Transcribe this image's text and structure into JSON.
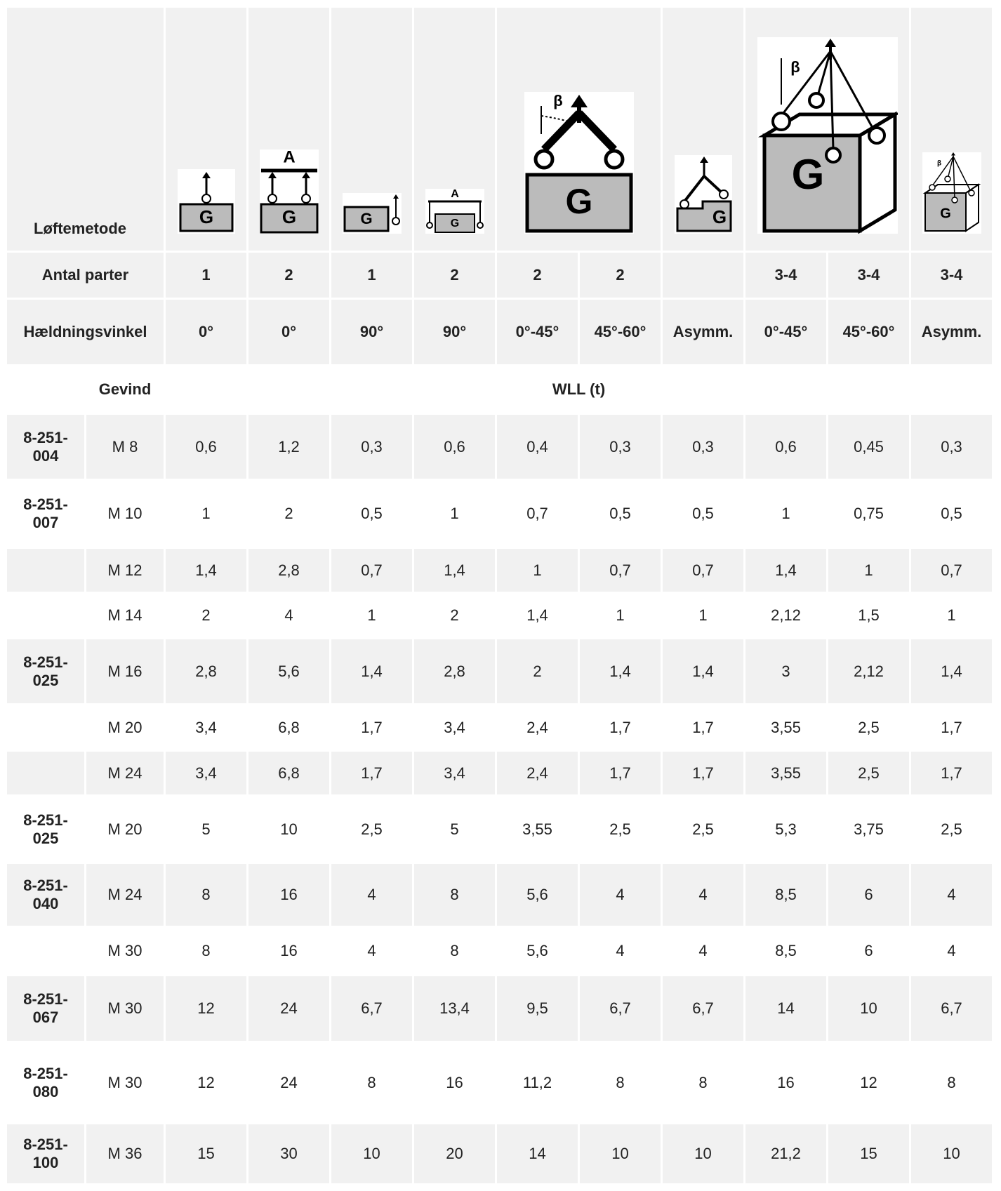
{
  "header": {
    "method_label": "Løftemetode",
    "parts_label": "Antal parter",
    "parts": [
      "1",
      "2",
      "1",
      "2",
      "2",
      "2",
      null,
      "3-4",
      "3-4",
      "3-4"
    ],
    "angle_label": "Hældningsvinkel",
    "angles": [
      "0°",
      "0°",
      "90°",
      "90°",
      "0°-45°",
      "45°-60°",
      "Asymm.",
      "0°-45°",
      "45°-60°",
      "Asymm."
    ],
    "thread_label": "Gevind",
    "wll_label": "WLL (t)"
  },
  "icons": {
    "load": "G",
    "beam": "A",
    "angle": "β"
  },
  "rows": [
    {
      "part": "8-251-004",
      "thread": "M 8",
      "wll": [
        "0,6",
        "1,2",
        "0,3",
        "0,6",
        "0,4",
        "0,3",
        "0,3",
        "0,6",
        "0,45",
        "0,3"
      ]
    },
    {
      "part": "8-251-007",
      "thread": "M 10",
      "wll": [
        "1",
        "2",
        "0,5",
        "1",
        "0,7",
        "0,5",
        "0,5",
        "1",
        "0,75",
        "0,5"
      ]
    },
    {
      "part": null,
      "thread": "M 12",
      "wll": [
        "1,4",
        "2,8",
        "0,7",
        "1,4",
        "1",
        "0,7",
        "0,7",
        "1,4",
        "1",
        "0,7"
      ]
    },
    {
      "part": null,
      "thread": "M 14",
      "wll": [
        "2",
        "4",
        "1",
        "2",
        "1,4",
        "1",
        "1",
        "2,12",
        "1,5",
        "1"
      ]
    },
    {
      "part": "8-251-025",
      "thread": "M 16",
      "wll": [
        "2,8",
        "5,6",
        "1,4",
        "2,8",
        "2",
        "1,4",
        "1,4",
        "3",
        "2,12",
        "1,4"
      ]
    },
    {
      "part": null,
      "thread": "M 20",
      "wll": [
        "3,4",
        "6,8",
        "1,7",
        "3,4",
        "2,4",
        "1,7",
        "1,7",
        "3,55",
        "2,5",
        "1,7"
      ]
    },
    {
      "part": null,
      "thread": "M 24",
      "wll": [
        "3,4",
        "6,8",
        "1,7",
        "3,4",
        "2,4",
        "1,7",
        "1,7",
        "3,55",
        "2,5",
        "1,7"
      ]
    },
    {
      "part": "8-251-025",
      "thread": "M 20",
      "wll": [
        "5",
        "10",
        "2,5",
        "5",
        "3,55",
        "2,5",
        "2,5",
        "5,3",
        "3,75",
        "2,5"
      ]
    },
    {
      "part": "8-251-040",
      "thread": "M 24",
      "wll": [
        "8",
        "16",
        "4",
        "8",
        "5,6",
        "4",
        "4",
        "8,5",
        "6",
        "4"
      ]
    },
    {
      "part": null,
      "thread": "M 30",
      "wll": [
        "8",
        "16",
        "4",
        "8",
        "5,6",
        "4",
        "4",
        "8,5",
        "6",
        "4"
      ]
    },
    {
      "part": "8-251-067",
      "thread": "M 30",
      "wll": [
        "12",
        "24",
        "6,7",
        "13,4",
        "9,5",
        "6,7",
        "6,7",
        "14",
        "10",
        "6,7"
      ]
    },
    {
      "part": "8-251-080",
      "thread": "M 30",
      "wll": [
        "12",
        "24",
        "8",
        "16",
        "11,2",
        "8",
        "8",
        "16",
        "12",
        "8"
      ]
    },
    {
      "part": "8-251-100",
      "thread": "M 36",
      "wll": [
        "15",
        "30",
        "10",
        "20",
        "14",
        "10",
        "10",
        "21,2",
        "15",
        "10"
      ]
    }
  ]
}
